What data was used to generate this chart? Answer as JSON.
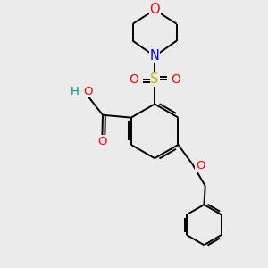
{
  "background_color": "#ebebeb",
  "bond_color": "#000000",
  "atom_colors": {
    "O": "#ff0000",
    "N": "#0000ff",
    "S": "#ccaa00",
    "C": "#000000",
    "H": "#008888"
  },
  "figsize": [
    3.0,
    3.0
  ],
  "dpi": 100,
  "xlim": [
    0,
    10
  ],
  "ylim": [
    0,
    10
  ]
}
